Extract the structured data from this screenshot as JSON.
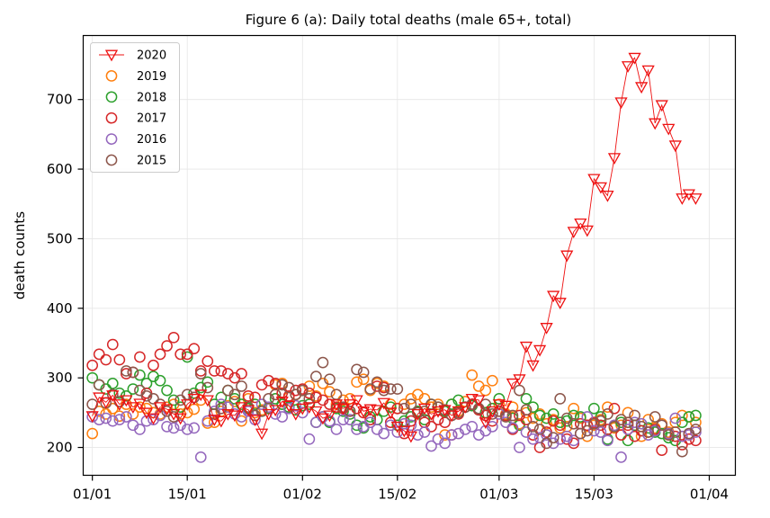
{
  "chart_data": {
    "type": "scatter",
    "title": "Figure 6 (a): Daily total deaths (male 65+, total)",
    "xlabel": "",
    "ylabel": "death counts",
    "x_tick_labels": [
      "01/01",
      "15/01",
      "01/02",
      "15/02",
      "01/03",
      "15/03",
      "01/04"
    ],
    "y_tick_labels": [
      "200",
      "300",
      "400",
      "500",
      "600",
      "700"
    ],
    "ylim": [
      160,
      792
    ],
    "grid": true,
    "legend_position": "top-left",
    "series": [
      {
        "name": "2020",
        "color": "#ee1111",
        "marker": "triangle-down",
        "line": true,
        "x": [
          "01/01",
          "02/01",
          "03/01",
          "04/01",
          "05/01",
          "06/01",
          "07/01",
          "08/01",
          "09/01",
          "10/01",
          "11/01",
          "12/01",
          "13/01",
          "14/01",
          "15/01",
          "16/01",
          "17/01",
          "18/01",
          "19/01",
          "20/01",
          "21/01",
          "22/01",
          "23/01",
          "24/01",
          "25/01",
          "26/01",
          "27/01",
          "28/01",
          "29/01",
          "30/01",
          "31/01",
          "01/02",
          "02/02",
          "03/02",
          "04/02",
          "05/02",
          "06/02",
          "07/02",
          "08/02",
          "09/02",
          "10/02",
          "11/02",
          "12/02",
          "13/02",
          "14/02",
          "15/02",
          "16/02",
          "17/02",
          "18/02",
          "19/02",
          "20/02",
          "21/02",
          "22/02",
          "23/02",
          "24/02",
          "25/02",
          "26/02",
          "27/02",
          "28/02",
          "29/02",
          "01/03",
          "02/03",
          "03/03",
          "04/03",
          "05/03",
          "06/03",
          "07/03",
          "08/03",
          "09/03",
          "10/03",
          "11/03",
          "12/03",
          "13/03",
          "14/03",
          "15/03",
          "16/03",
          "17/03",
          "18/03",
          "19/03",
          "20/03",
          "21/03",
          "22/03",
          "23/03",
          "24/03",
          "25/03",
          "26/03",
          "27/03",
          "28/03",
          "29/03",
          "30/03"
        ],
        "y": [
          245,
          272,
          265,
          275,
          262,
          268,
          258,
          263,
          250,
          242,
          258,
          255,
          248,
          242,
          262,
          270,
          276,
          268,
          240,
          238,
          248,
          246,
          258,
          254,
          240,
          220,
          248,
          254,
          266,
          260,
          248,
          256,
          258,
          252,
          242,
          246,
          262,
          256,
          262,
          268,
          252,
          255,
          254,
          264,
          250,
          230,
          224,
          216,
          248,
          256,
          248,
          252,
          254,
          246,
          252,
          258,
          270,
          268,
          236,
          252,
          262,
          260,
          292,
          298,
          345,
          318,
          340,
          372,
          418,
          408,
          476,
          510,
          522,
          512,
          586,
          574,
          562,
          616,
          696,
          748,
          760,
          718,
          742,
          666,
          692,
          658,
          634,
          558,
          564,
          558
        ]
      },
      {
        "name": "2019",
        "color": "#ff7f0e",
        "marker": "circle",
        "line": false,
        "x": [
          "01/01",
          "02/01",
          "03/01",
          "04/01",
          "05/01",
          "06/01",
          "07/01",
          "08/01",
          "09/01",
          "10/01",
          "11/01",
          "12/01",
          "13/01",
          "14/01",
          "15/01",
          "16/01",
          "17/01",
          "18/01",
          "19/01",
          "20/01",
          "21/01",
          "22/01",
          "23/01",
          "24/01",
          "25/01",
          "26/01",
          "27/01",
          "28/01",
          "29/01",
          "30/01",
          "31/01",
          "01/02",
          "02/02",
          "03/02",
          "04/02",
          "05/02",
          "06/02",
          "07/02",
          "08/02",
          "09/02",
          "10/02",
          "11/02",
          "12/02",
          "13/02",
          "14/02",
          "15/02",
          "16/02",
          "17/02",
          "18/02",
          "19/02",
          "20/02",
          "21/02",
          "22/02",
          "23/02",
          "24/02",
          "25/02",
          "26/02",
          "27/02",
          "28/02",
          "29/02",
          "01/03",
          "02/03",
          "03/03",
          "04/03",
          "05/03",
          "06/03",
          "07/03",
          "08/03",
          "09/03",
          "10/03",
          "11/03",
          "12/03",
          "13/03",
          "14/03",
          "15/03",
          "16/03",
          "17/03",
          "18/03",
          "19/03",
          "20/03",
          "21/03",
          "22/03",
          "23/03",
          "24/03",
          "25/03",
          "26/03",
          "27/03",
          "28/03",
          "29/03",
          "30/03"
        ],
        "y": [
          220,
          252,
          248,
          256,
          245,
          262,
          248,
          258,
          256,
          250,
          248,
          258,
          262,
          248,
          250,
          255,
          268,
          235,
          236,
          252,
          260,
          266,
          238,
          270,
          250,
          254,
          256,
          290,
          292,
          272,
          276,
          282,
          288,
          274,
          292,
          280,
          262,
          268,
          270,
          294,
          298,
          282,
          292,
          288,
          262,
          256,
          262,
          270,
          276,
          270,
          258,
          262,
          218,
          262,
          252,
          266,
          304,
          288,
          282,
          296,
          262,
          248,
          258,
          234,
          250,
          242,
          248,
          234,
          240,
          228,
          230,
          256,
          242,
          216,
          232,
          240,
          258,
          228,
          232,
          250,
          232,
          216,
          240,
          228,
          234,
          222,
          236,
          246,
          244,
          236
        ]
      },
      {
        "name": "2018",
        "color": "#2ca02c",
        "marker": "circle",
        "line": false,
        "x": [
          "01/01",
          "02/01",
          "03/01",
          "04/01",
          "05/01",
          "06/01",
          "07/01",
          "08/01",
          "09/01",
          "10/01",
          "11/01",
          "12/01",
          "13/01",
          "14/01",
          "15/01",
          "16/01",
          "17/01",
          "18/01",
          "19/01",
          "20/01",
          "21/01",
          "22/01",
          "23/01",
          "24/01",
          "25/01",
          "26/01",
          "27/01",
          "28/01",
          "29/01",
          "30/01",
          "31/01",
          "01/02",
          "02/02",
          "03/02",
          "04/02",
          "05/02",
          "06/02",
          "07/02",
          "08/02",
          "09/02",
          "10/02",
          "11/02",
          "12/02",
          "13/02",
          "14/02",
          "15/02",
          "16/02",
          "17/02",
          "18/02",
          "19/02",
          "20/02",
          "21/02",
          "22/02",
          "23/02",
          "24/02",
          "25/02",
          "26/02",
          "27/02",
          "28/02",
          "29/02",
          "01/03",
          "02/03",
          "03/03",
          "04/03",
          "05/03",
          "06/03",
          "07/03",
          "08/03",
          "09/03",
          "10/03",
          "11/03",
          "12/03",
          "13/03",
          "14/03",
          "15/03",
          "16/03",
          "17/03",
          "18/03",
          "19/03",
          "20/03",
          "21/03",
          "22/03",
          "23/03",
          "24/03",
          "25/03",
          "26/03",
          "27/03",
          "28/03",
          "29/03",
          "30/03"
        ],
        "y": [
          300,
          290,
          284,
          292,
          278,
          274,
          284,
          304,
          292,
          302,
          296,
          282,
          268,
          258,
          330,
          278,
          286,
          294,
          262,
          272,
          282,
          270,
          262,
          256,
          262,
          252,
          256,
          270,
          262,
          258,
          254,
          260,
          262,
          236,
          244,
          236,
          256,
          252,
          248,
          232,
          228,
          244,
          240,
          252,
          258,
          232,
          238,
          244,
          252,
          240,
          262,
          258,
          252,
          262,
          268,
          258,
          260,
          254,
          250,
          256,
          270,
          246,
          242,
          232,
          270,
          258,
          246,
          242,
          248,
          236,
          238,
          246,
          244,
          232,
          256,
          244,
          212,
          230,
          236,
          210,
          232,
          224,
          228,
          222,
          220,
          214,
          210,
          236,
          244,
          246
        ]
      },
      {
        "name": "2017",
        "color": "#d62728",
        "marker": "circle",
        "line": false,
        "x": [
          "01/01",
          "02/01",
          "03/01",
          "04/01",
          "05/01",
          "06/01",
          "07/01",
          "08/01",
          "09/01",
          "10/01",
          "11/01",
          "12/01",
          "13/01",
          "14/01",
          "15/01",
          "16/01",
          "17/01",
          "18/01",
          "19/01",
          "20/01",
          "21/01",
          "22/01",
          "23/01",
          "24/01",
          "25/01",
          "26/01",
          "27/01",
          "28/01",
          "29/01",
          "30/01",
          "31/01",
          "01/02",
          "02/02",
          "03/02",
          "04/02",
          "05/02",
          "06/02",
          "07/02",
          "08/02",
          "09/02",
          "10/02",
          "11/02",
          "12/02",
          "13/02",
          "14/02",
          "15/02",
          "16/02",
          "17/02",
          "18/02",
          "19/02",
          "20/02",
          "21/02",
          "22/02",
          "23/02",
          "24/02",
          "25/02",
          "26/02",
          "27/02",
          "28/02",
          "29/02",
          "01/03",
          "02/03",
          "03/03",
          "04/03",
          "05/03",
          "06/03",
          "07/03",
          "08/03",
          "09/03",
          "10/03",
          "11/03",
          "12/03",
          "13/03",
          "14/03",
          "15/03",
          "16/03",
          "17/03",
          "18/03",
          "19/03",
          "20/03",
          "21/03",
          "22/03",
          "23/03",
          "24/03",
          "25/03",
          "26/03",
          "27/03",
          "28/03",
          "29/03",
          "30/03"
        ],
        "y": [
          318,
          334,
          326,
          348,
          326,
          306,
          308,
          330,
          278,
          318,
          334,
          346,
          358,
          334,
          334,
          342,
          310,
          324,
          310,
          310,
          306,
          300,
          306,
          274,
          272,
          290,
          296,
          292,
          278,
          274,
          282,
          284,
          278,
          272,
          268,
          262,
          258,
          256,
          252,
          256,
          250,
          240,
          288,
          286,
          236,
          256,
          220,
          238,
          250,
          236,
          230,
          240,
          236,
          218,
          248,
          258,
          262,
          254,
          246,
          238,
          252,
          246,
          226,
          246,
          240,
          218,
          200,
          222,
          238,
          232,
          212,
          206,
          234,
          232,
          236,
          232,
          226,
          256,
          218,
          232,
          216,
          224,
          222,
          226,
          196,
          220,
          216,
          204,
          212,
          210
        ]
      },
      {
        "name": "2016",
        "color": "#9467bd",
        "marker": "circle",
        "line": false,
        "x": [
          "01/01",
          "02/01",
          "03/01",
          "04/01",
          "05/01",
          "06/01",
          "07/01",
          "08/01",
          "09/01",
          "10/01",
          "11/01",
          "12/01",
          "13/01",
          "14/01",
          "15/01",
          "16/01",
          "17/01",
          "18/01",
          "19/01",
          "20/01",
          "21/01",
          "22/01",
          "23/01",
          "24/01",
          "25/01",
          "26/01",
          "27/01",
          "28/01",
          "29/01",
          "30/01",
          "31/01",
          "01/02",
          "02/02",
          "03/02",
          "04/02",
          "05/02",
          "06/02",
          "07/02",
          "08/02",
          "09/02",
          "10/02",
          "11/02",
          "12/02",
          "13/02",
          "14/02",
          "15/02",
          "16/02",
          "17/02",
          "18/02",
          "19/02",
          "20/02",
          "21/02",
          "22/02",
          "23/02",
          "24/02",
          "25/02",
          "26/02",
          "27/02",
          "28/02",
          "29/02",
          "01/03",
          "02/03",
          "03/03",
          "04/03",
          "05/03",
          "06/03",
          "07/03",
          "08/03",
          "09/03",
          "10/03",
          "11/03",
          "12/03",
          "13/03",
          "14/03",
          "15/03",
          "16/03",
          "17/03",
          "18/03",
          "19/03",
          "20/03",
          "21/03",
          "22/03",
          "23/03",
          "24/03",
          "25/03",
          "26/03",
          "27/03",
          "28/03",
          "29/03",
          "30/03"
        ],
        "y": [
          244,
          240,
          242,
          238,
          240,
          244,
          232,
          226,
          238,
          240,
          246,
          230,
          228,
          232,
          226,
          228,
          186,
          238,
          252,
          262,
          258,
          248,
          244,
          252,
          240,
          262,
          258,
          248,
          244,
          256,
          260,
          250,
          212,
          236,
          244,
          238,
          226,
          240,
          240,
          226,
          230,
          236,
          226,
          220,
          232,
          222,
          234,
          232,
          218,
          222,
          202,
          212,
          206,
          218,
          220,
          226,
          230,
          218,
          224,
          230,
          248,
          236,
          228,
          200,
          222,
          212,
          214,
          218,
          206,
          212,
          216,
          210,
          220,
          244,
          224,
          222,
          210,
          232,
          186,
          226,
          236,
          234,
          218,
          224,
          232,
          220,
          242,
          216,
          218,
          222
        ]
      },
      {
        "name": "2015",
        "color": "#8c564b",
        "marker": "circle",
        "line": false,
        "x": [
          "01/01",
          "02/01",
          "03/01",
          "04/01",
          "05/01",
          "06/01",
          "07/01",
          "08/01",
          "09/01",
          "10/01",
          "11/01",
          "12/01",
          "13/01",
          "14/01",
          "15/01",
          "16/01",
          "17/01",
          "18/01",
          "19/01",
          "20/01",
          "21/01",
          "22/01",
          "23/01",
          "24/01",
          "25/01",
          "26/01",
          "27/01",
          "28/01",
          "29/01",
          "30/01",
          "31/01",
          "01/02",
          "02/02",
          "03/02",
          "04/02",
          "05/02",
          "06/02",
          "07/02",
          "08/02",
          "09/02",
          "10/02",
          "11/02",
          "12/02",
          "13/02",
          "14/02",
          "15/02",
          "16/02",
          "17/02",
          "18/02",
          "19/02",
          "20/02",
          "21/02",
          "22/02",
          "23/02",
          "24/02",
          "25/02",
          "26/02",
          "27/02",
          "28/02",
          "29/02",
          "01/03",
          "02/03",
          "03/03",
          "04/03",
          "05/03",
          "06/03",
          "07/03",
          "08/03",
          "09/03",
          "10/03",
          "11/03",
          "12/03",
          "13/03",
          "14/03",
          "15/03",
          "16/03",
          "17/03",
          "18/03",
          "19/03",
          "20/03",
          "21/03",
          "22/03",
          "23/03",
          "24/03",
          "25/03",
          "26/03",
          "27/03",
          "28/03",
          "29/03",
          "30/03"
        ],
        "y": [
          262,
          290,
          264,
          276,
          266,
          310,
          308,
          282,
          274,
          270,
          262,
          252,
          244,
          268,
          276,
          272,
          306,
          286,
          248,
          256,
          282,
          276,
          288,
          258,
          246,
          252,
          270,
          276,
          290,
          286,
          276,
          282,
          270,
          302,
          322,
          298,
          276,
          258,
          252,
          312,
          308,
          284,
          294,
          282,
          284,
          284,
          256,
          262,
          250,
          252,
          262,
          258,
          254,
          246,
          250,
          258,
          262,
          256,
          262,
          248,
          252,
          244,
          246,
          282,
          254,
          230,
          226,
          206,
          214,
          270,
          242,
          234,
          220,
          224,
          234,
          238,
          248,
          230,
          240,
          236,
          246,
          230,
          222,
          244,
          232,
          218,
          222,
          194,
          220,
          226
        ]
      }
    ]
  }
}
